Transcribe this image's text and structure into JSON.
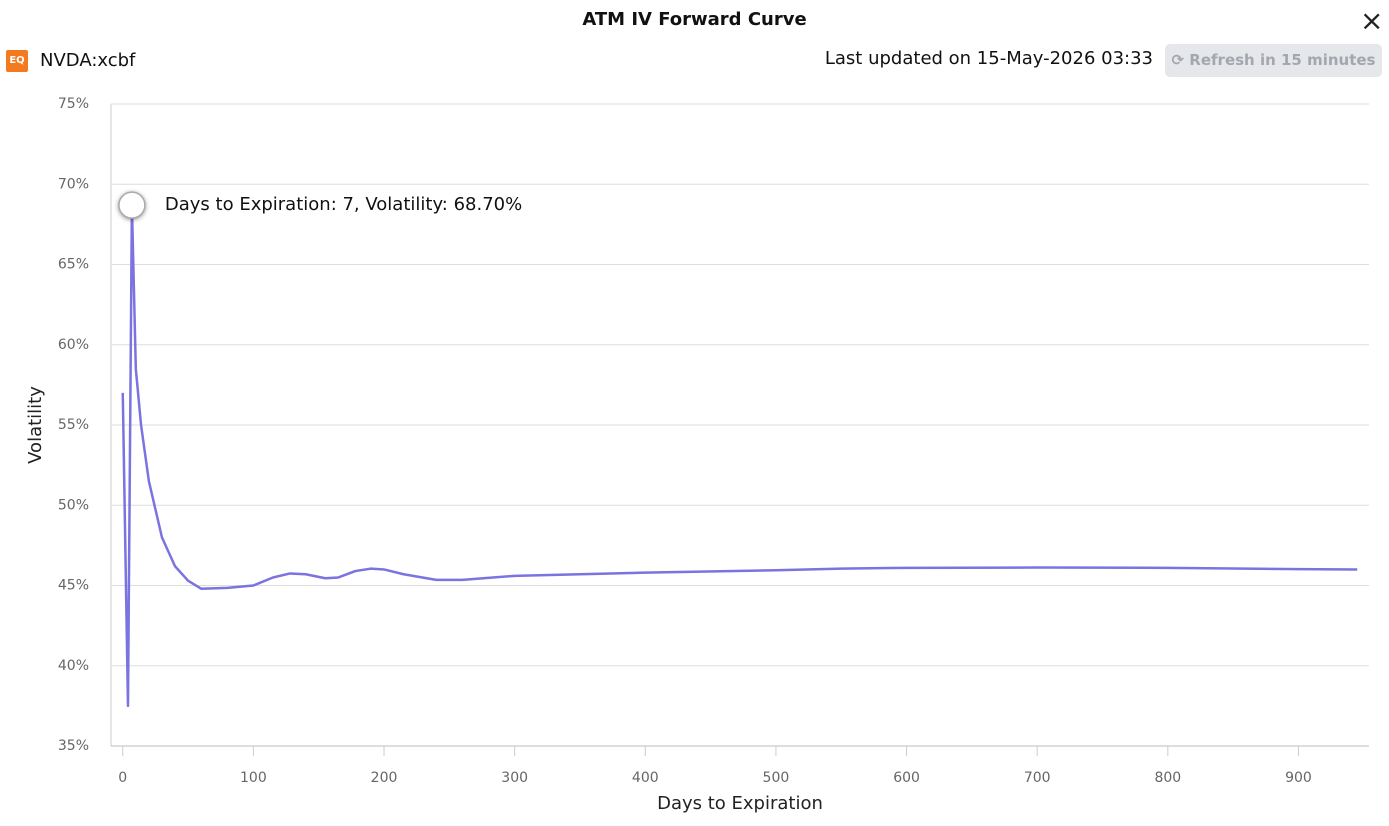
{
  "header": {
    "title": "ATM IV Forward Curve",
    "close": "×",
    "logo": "EQ",
    "symbol": "NVDA:xcbf",
    "updated": "Last updated on 15-May-2026 03:33",
    "refresh": "Refresh in 15 minutes"
  },
  "chart_data": {
    "type": "line",
    "x_label": "Days to Expiration",
    "y_label": "Volatility",
    "xlim": [
      -9,
      954
    ],
    "ylim": [
      35,
      75
    ],
    "xticks": [
      0,
      100,
      200,
      300,
      400,
      500,
      600,
      700,
      800,
      900
    ],
    "yticks": [
      {
        "value": 35,
        "label": "35%"
      },
      {
        "value": 40,
        "label": "40%"
      },
      {
        "value": 45,
        "label": "45%"
      },
      {
        "value": 50,
        "label": "50%"
      },
      {
        "value": 55,
        "label": "55%"
      },
      {
        "value": 60,
        "label": "60%"
      },
      {
        "value": 65,
        "label": "65%"
      },
      {
        "value": 70,
        "label": "70%"
      },
      {
        "value": 75,
        "label": "75%"
      }
    ],
    "grid": true,
    "series": [
      {
        "color": "#7b73e0",
        "x": [
          0,
          4,
          7,
          10,
          14,
          20,
          30,
          40,
          50,
          60,
          80,
          100,
          115,
          128,
          140,
          155,
          165,
          178,
          190,
          200,
          215,
          240,
          260,
          300,
          350,
          400,
          500,
          550,
          600,
          700,
          800,
          900,
          945
        ],
        "values": [
          57.0,
          37.5,
          68.7,
          58.5,
          55.0,
          51.5,
          48.0,
          46.2,
          45.3,
          44.8,
          44.85,
          45.0,
          45.5,
          45.75,
          45.7,
          45.45,
          45.5,
          45.9,
          46.05,
          46.0,
          45.7,
          45.35,
          45.35,
          45.6,
          45.7,
          45.8,
          45.95,
          46.05,
          46.1,
          46.12,
          46.1,
          46.02,
          46.0
        ]
      }
    ],
    "tooltip": {
      "x": 7,
      "y": 68.7,
      "text": "Days to Expiration: 7, Volatility: 68.70%"
    }
  }
}
